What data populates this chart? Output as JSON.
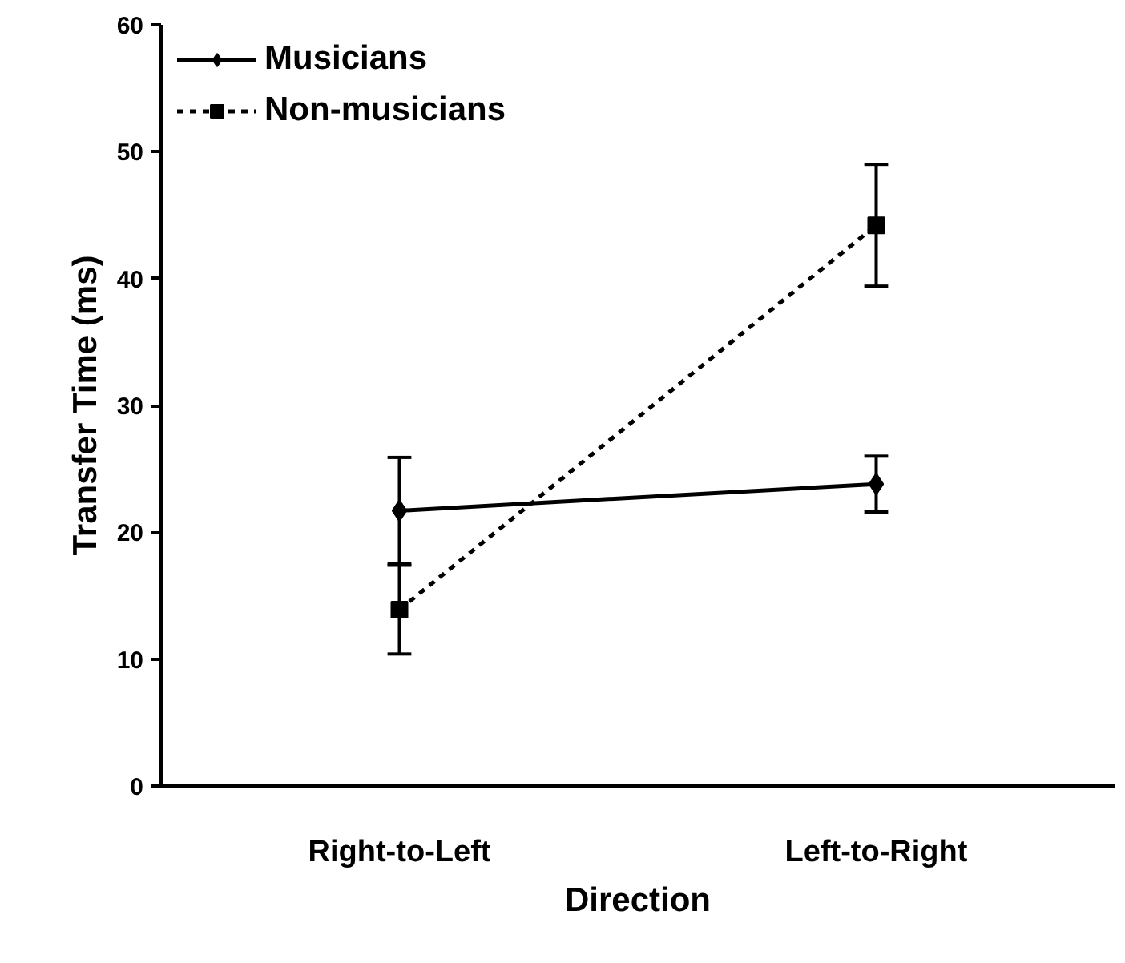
{
  "chart_data": {
    "type": "line",
    "xlabel": "Direction",
    "ylabel": "Transfer Time (ms)",
    "categories": [
      "Right-to-Left",
      "Left-to-Right"
    ],
    "series": [
      {
        "name": "Musicians",
        "color": "#000000",
        "values": [
          21.7,
          23.8
        ],
        "errors": [
          4.2,
          2.2
        ],
        "marker": "diamond",
        "line_style": "solid"
      },
      {
        "name": "Non-musicians",
        "color": "#000000",
        "values": [
          13.9,
          44.2
        ],
        "errors": [
          3.5,
          4.8
        ],
        "marker": "square",
        "line_style": "dashed"
      }
    ],
    "ylim": [
      0,
      60
    ],
    "yticks": [
      0,
      10,
      20,
      30,
      40,
      50,
      60
    ],
    "grid": false,
    "legend": "top left"
  }
}
